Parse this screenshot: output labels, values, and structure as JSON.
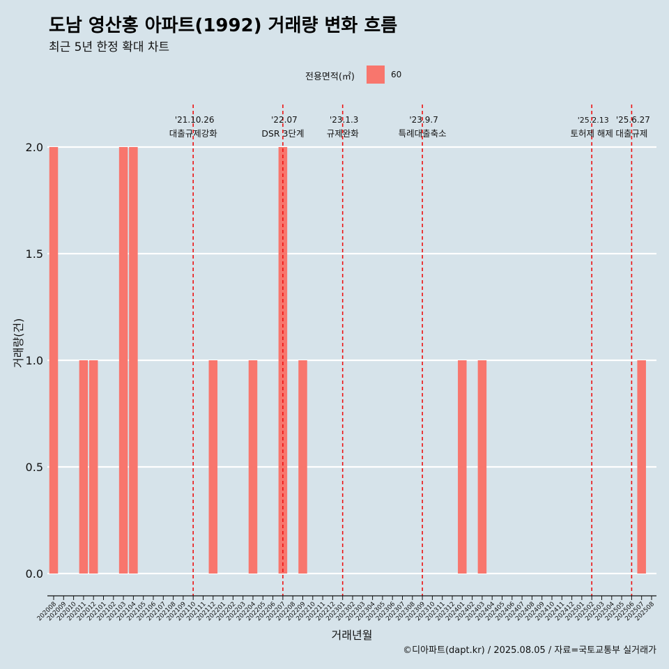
{
  "title": "도남 영산홍 아파트(1992) 거래량 변화 흐름",
  "subtitle": "최근 5년 한정 확대 차트",
  "caption": "©디아파트(dapt.kr) / 2025.08.05 / 자료=국토교통부 실거래가",
  "colors": {
    "bar": "#f8766d",
    "background": "#d6e3ea",
    "grid": "#ffffff",
    "event_line": "#ee1111"
  },
  "chart_data": {
    "type": "bar",
    "title": "도남 영산홍 아파트(1992) 거래량 변화 흐름",
    "subtitle": "최근 5년 한정 확대 차트",
    "xlabel": "거래년월",
    "ylabel": "거래량(건)",
    "ylim": [
      0,
      2
    ],
    "yticks": [
      "0.0",
      "0.5",
      "1.0",
      "1.5",
      "2.0"
    ],
    "grid": "horizontal",
    "legend": {
      "position": "top",
      "title": "전용면적(㎡)",
      "entries": [
        "60"
      ]
    },
    "categories": [
      "202008",
      "202009",
      "202010",
      "202011",
      "202012",
      "202101",
      "202102",
      "202103",
      "202104",
      "202105",
      "202106",
      "202107",
      "202108",
      "202109",
      "202110",
      "202111",
      "202112",
      "202201",
      "202202",
      "202203",
      "202204",
      "202205",
      "202206",
      "202207",
      "202208",
      "202209",
      "202210",
      "202211",
      "202212",
      "202301",
      "202302",
      "202303",
      "202304",
      "202305",
      "202306",
      "202307",
      "202308",
      "202309",
      "202310",
      "202311",
      "202312",
      "202401",
      "202402",
      "202403",
      "202404",
      "202405",
      "202406",
      "202407",
      "202408",
      "202409",
      "202410",
      "202411",
      "202412",
      "202501",
      "202502",
      "202503",
      "202504",
      "202505",
      "202506",
      "202507",
      "202508"
    ],
    "series": [
      {
        "name": "60",
        "values": [
          {
            "x": "202008",
            "y": 2
          },
          {
            "x": "202011",
            "y": 1
          },
          {
            "x": "202012",
            "y": 1
          },
          {
            "x": "202103",
            "y": 2
          },
          {
            "x": "202104",
            "y": 2
          },
          {
            "x": "202112",
            "y": 1
          },
          {
            "x": "202204",
            "y": 1
          },
          {
            "x": "202207",
            "y": 2
          },
          {
            "x": "202209",
            "y": 1
          },
          {
            "x": "202401",
            "y": 1
          },
          {
            "x": "202403",
            "y": 1
          },
          {
            "x": "202507",
            "y": 1
          }
        ]
      }
    ],
    "annotations": [
      {
        "x": "202110",
        "date": "'21.10.26",
        "label": "대출규제강화"
      },
      {
        "x": "202207",
        "date": "'22.07",
        "label": "DSR 3단계"
      },
      {
        "x": "202301",
        "date": "'23.1.3",
        "label": "규제완화"
      },
      {
        "x": "202309",
        "date": "'23.9.7",
        "label": "특례대출축소"
      },
      {
        "x": "202502",
        "date": "'25.2.13",
        "label": "토허제 해제"
      },
      {
        "x": "202506",
        "date": "'25.6.27",
        "label": "대출규제"
      }
    ]
  }
}
